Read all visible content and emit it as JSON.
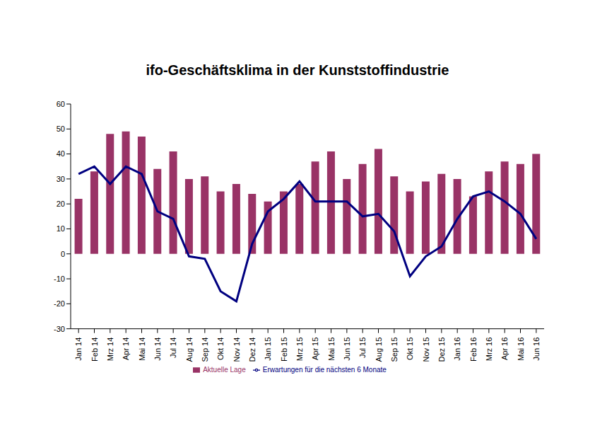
{
  "chart_data": {
    "type": "bar",
    "title": "ifo-Geschäftsklima in der Kunststoffindustrie",
    "categories": [
      "Jan 14",
      "Feb 14",
      "Mrz 14",
      "Apr 14",
      "Mai 14",
      "Jun 14",
      "Jul 14",
      "Aug 14",
      "Sep 14",
      "Okt 14",
      "Nov 14",
      "Dez 14",
      "Jan 15",
      "Feb 15",
      "Mrz 15",
      "Apr 15",
      "Mai 15",
      "Jun 15",
      "Jul 15",
      "Aug 15",
      "Sep 15",
      "Okt 15",
      "Nov 15",
      "Dez 15",
      "Jan 16",
      "Feb 16",
      "Mrz 16",
      "Apr 16",
      "Mai 16",
      "Jun 16"
    ],
    "series": [
      {
        "name": "Aktuelle Lage",
        "type": "bar",
        "color": "#993366",
        "values": [
          22,
          33,
          48,
          49,
          47,
          34,
          41,
          30,
          31,
          25,
          28,
          24,
          21,
          25,
          28,
          37,
          41,
          30,
          36,
          42,
          31,
          25,
          29,
          32,
          30,
          23,
          33,
          37,
          36,
          40
        ]
      },
      {
        "name": "Erwartungen für die nächsten 6 Monate",
        "type": "line",
        "color": "#000080",
        "values": [
          32,
          35,
          28,
          35,
          32,
          17,
          14,
          -1,
          -2,
          -15,
          -19,
          4,
          17,
          22,
          29,
          21,
          21,
          21,
          15,
          16,
          9,
          -9,
          -1,
          3,
          14,
          23,
          25,
          21,
          16,
          6
        ]
      }
    ],
    "ylim": [
      -30,
      60
    ],
    "yticks": [
      -30,
      -20,
      -10,
      0,
      10,
      20,
      30,
      40,
      50,
      60
    ],
    "grid": false,
    "legend": "bottom"
  }
}
